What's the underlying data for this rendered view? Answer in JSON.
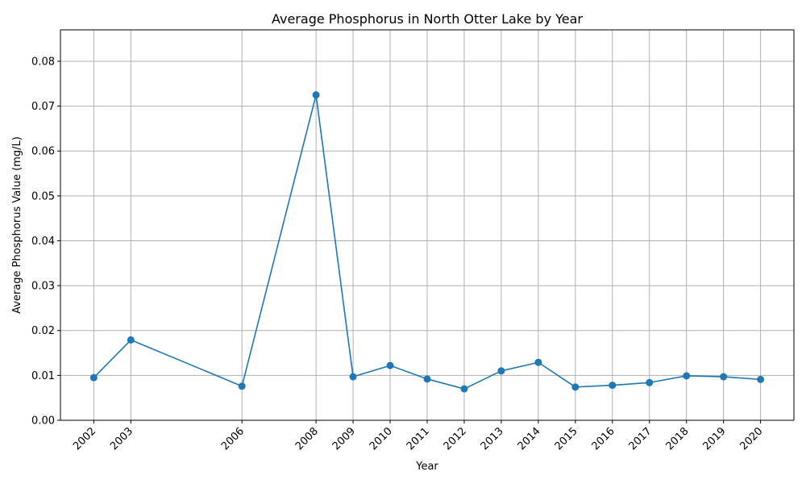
{
  "chart_data": {
    "type": "line",
    "title": "Average Phosphorus in North Otter Lake by Year",
    "xlabel": "Year",
    "ylabel": "Average Phosphorus Value (mg/L)",
    "x": [
      2002,
      2003,
      2006,
      2008,
      2009,
      2010,
      2011,
      2012,
      2013,
      2014,
      2015,
      2016,
      2017,
      2018,
      2019,
      2020
    ],
    "x_tick_labels": [
      "2002",
      "2003",
      "2006",
      "2008",
      "2009",
      "2010",
      "2011",
      "2012",
      "2013",
      "2014",
      "2015",
      "2016",
      "2017",
      "2018",
      "2019",
      "2020"
    ],
    "series": [
      {
        "values": [
          0.0095,
          0.0179,
          0.0076,
          0.0725,
          0.0097,
          0.0122,
          0.0092,
          0.007,
          0.011,
          0.0129,
          0.0074,
          0.0078,
          0.0084,
          0.0099,
          0.0097,
          0.0091
        ],
        "color": "#1f77b4",
        "marker": "circle"
      }
    ],
    "y_ticks": [
      0.0,
      0.01,
      0.02,
      0.03,
      0.04,
      0.05,
      0.06,
      0.07,
      0.08
    ],
    "y_tick_labels": [
      "0.00",
      "0.01",
      "0.02",
      "0.03",
      "0.04",
      "0.05",
      "0.06",
      "0.07",
      "0.08"
    ],
    "xlim": [
      2001.1,
      2020.9
    ],
    "ylim": [
      0,
      0.087
    ],
    "grid": true,
    "x_tick_rotation": 45
  }
}
